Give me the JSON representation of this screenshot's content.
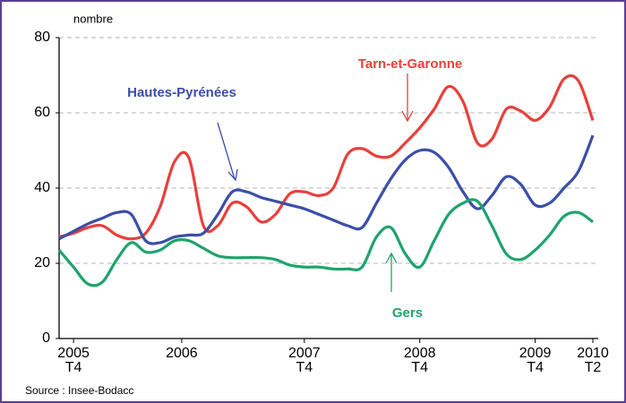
{
  "chart_data": {
    "type": "line",
    "y_label": "nombre",
    "source": "Source : Insee-Bodacc",
    "x": [
      -0.5,
      0,
      0.5,
      1,
      1.5,
      2,
      2.5,
      3,
      3.5,
      4,
      4.5,
      5,
      5.5,
      6,
      6.5,
      7,
      7.5,
      8,
      8.5,
      9,
      9.5,
      10,
      10.5,
      11,
      11.5,
      12,
      12.5,
      13,
      13.5,
      14,
      14.5,
      15,
      15.5,
      16,
      16.5,
      17,
      17.5,
      18
    ],
    "series": [
      {
        "name": "Tarn-et-Garonne",
        "color": "#e8403c",
        "values": [
          27,
          28,
          29.5,
          30,
          27.5,
          26.5,
          28,
          35,
          47,
          48,
          30,
          30,
          36,
          35,
          31,
          33,
          38.5,
          39,
          38,
          40,
          49,
          50.5,
          48.5,
          48.5,
          52,
          56,
          61,
          67,
          63,
          52,
          53,
          61,
          60.5,
          58,
          61.5,
          69,
          68.5,
          58
        ]
      },
      {
        "name": "Hautes-Pyrénées",
        "color": "#3b4ea8",
        "values": [
          26.5,
          28.5,
          30.5,
          32,
          33.5,
          33,
          26,
          25.5,
          27,
          27.5,
          28,
          33,
          39,
          39,
          37.5,
          36.5,
          35.5,
          34.5,
          33,
          31.5,
          30,
          29.5,
          36,
          42.5,
          47.5,
          50,
          49.5,
          45.5,
          39,
          34.5,
          38,
          43,
          41,
          35.5,
          36,
          40,
          44.5,
          54
        ]
      },
      {
        "name": "Gers",
        "color": "#1fa36e",
        "values": [
          23.5,
          19,
          14.5,
          15,
          21,
          25.5,
          23,
          23.5,
          26,
          26,
          24,
          22,
          21.5,
          21.5,
          21.5,
          21,
          19.5,
          19,
          19,
          18.5,
          18.5,
          19,
          27,
          29.5,
          22.5,
          19,
          26,
          33,
          36,
          36.5,
          30,
          22.5,
          21,
          23.5,
          27.5,
          32.5,
          33.5,
          31
        ]
      }
    ],
    "xlim": [
      -0.5,
      18
    ],
    "xticks": [
      {
        "value": 0,
        "label": "2005",
        "sublabel": "T4"
      },
      {
        "value": 3.75,
        "label": "2006"
      },
      {
        "value": 8,
        "label": "2007",
        "sublabel": "T4"
      },
      {
        "value": 12,
        "label": "2008",
        "sublabel": "T4"
      },
      {
        "value": 16,
        "label": "2009",
        "sublabel": "T4"
      },
      {
        "value": 18,
        "label": "2010",
        "sublabel": "T2"
      }
    ],
    "ylim": [
      0,
      80
    ],
    "yticks": [
      0,
      20,
      40,
      60,
      80
    ],
    "grid": true
  }
}
